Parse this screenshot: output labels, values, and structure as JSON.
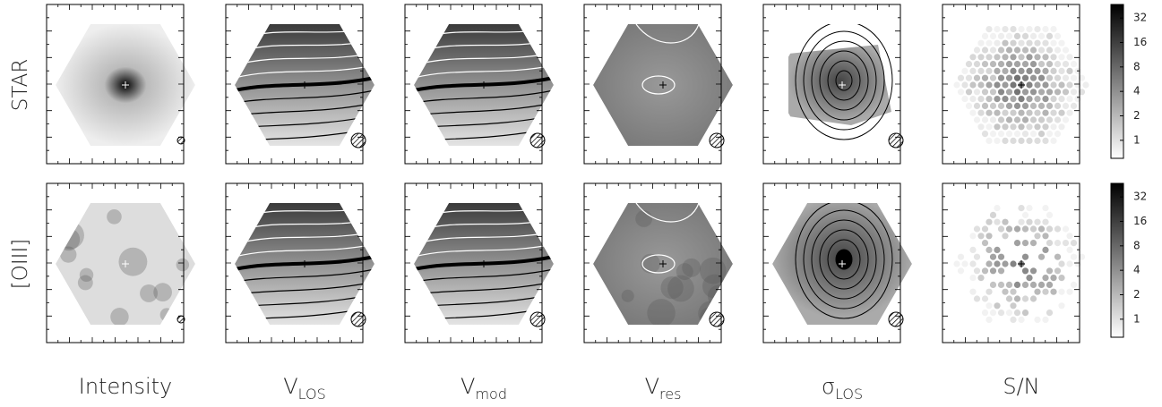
{
  "row_labels": [
    "STAR",
    "[OIII]"
  ],
  "column_labels": [
    {
      "text": "Intensity"
    },
    {
      "main": "V",
      "sub": "LOS"
    },
    {
      "main": "V",
      "sub": "mod"
    },
    {
      "main": "V",
      "sub": "res"
    },
    {
      "main": "σ",
      "sub": "LOS"
    },
    {
      "text": "S/N"
    }
  ],
  "colorbars": [
    {
      "ticks": [
        1,
        2,
        4,
        8,
        16,
        32
      ],
      "lim": [
        0.6,
        47
      ],
      "log": true
    },
    {
      "ticks": [
        1,
        2,
        4,
        8,
        16,
        32
      ],
      "lim": [
        0.6,
        47
      ],
      "log": true
    }
  ]
}
